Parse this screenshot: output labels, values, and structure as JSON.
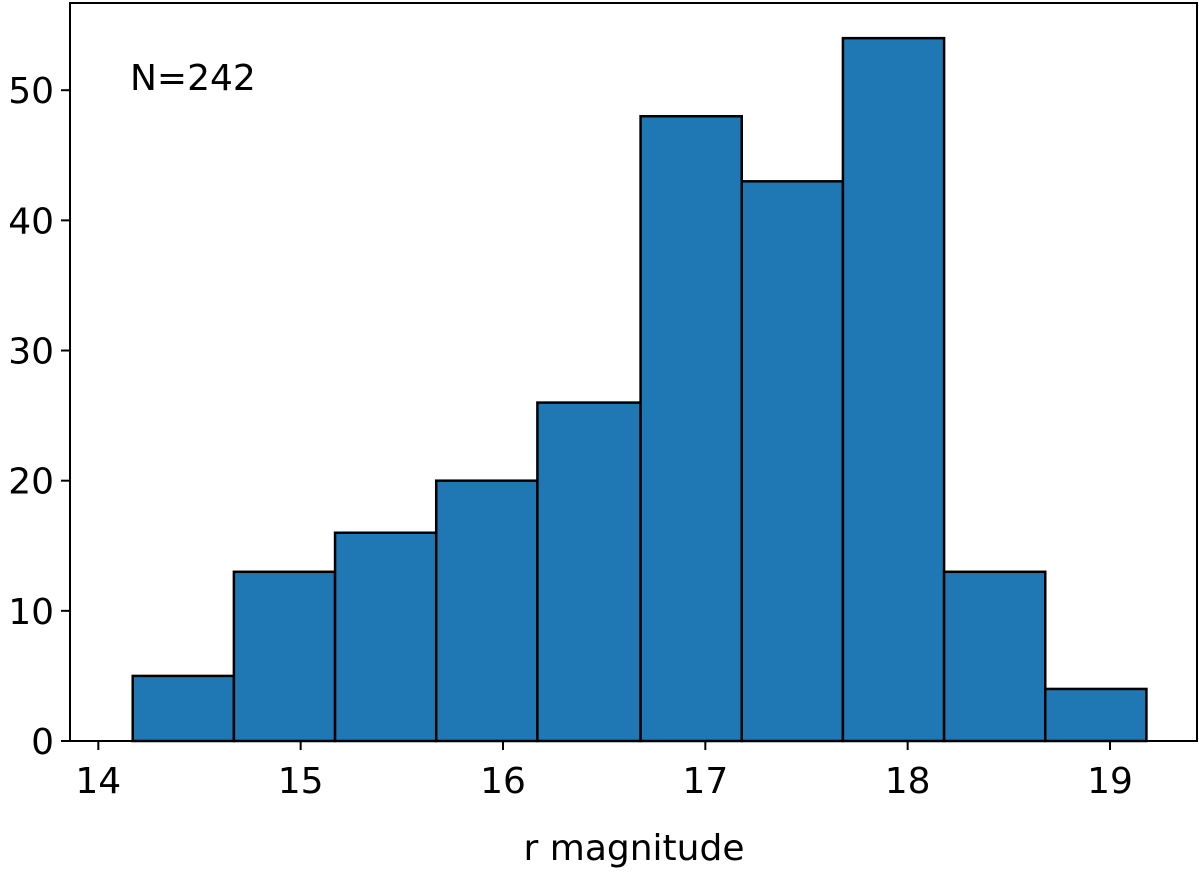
{
  "chart_data": {
    "type": "histogram",
    "xlabel": "r magnitude",
    "annotation": "N=242",
    "bins": [
      14.17,
      14.67,
      15.17,
      15.67,
      16.17,
      16.68,
      17.18,
      17.68,
      18.18,
      18.68,
      19.18
    ],
    "values": [
      5,
      13,
      16,
      20,
      26,
      48,
      43,
      54,
      13,
      4
    ],
    "color": "#1f77b4",
    "edgecolor": "#000000",
    "xlim": [
      13.86,
      19.43
    ],
    "xticks": [
      14,
      15,
      16,
      17,
      18,
      19
    ],
    "ylim": [
      0,
      56.7
    ],
    "yticks": [
      0,
      10,
      20,
      30,
      40,
      50
    ],
    "grid": false
  }
}
